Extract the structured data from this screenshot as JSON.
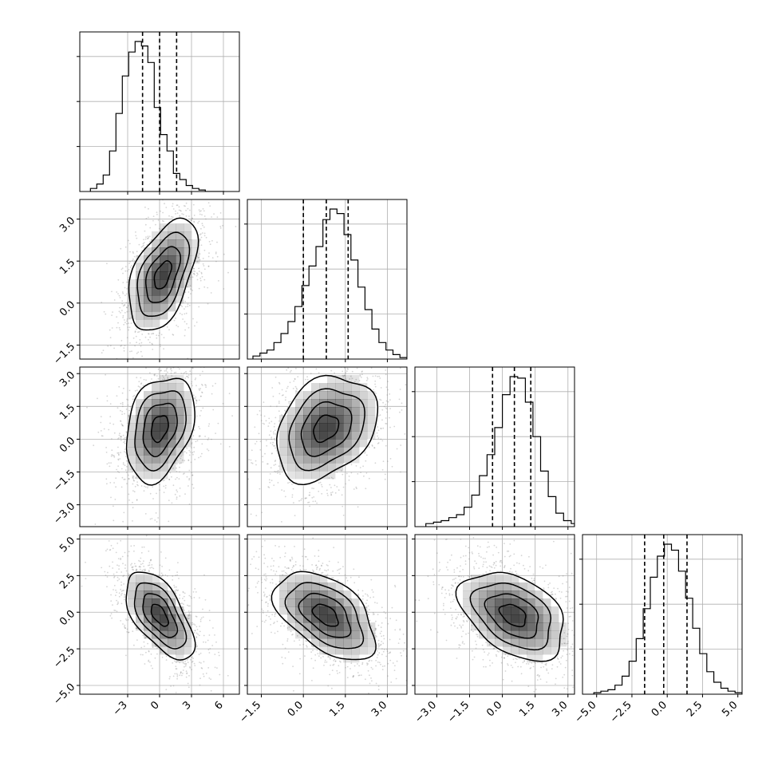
{
  "chart_data": {
    "type": "corner",
    "parameters": [
      {
        "xlim": [
          -7.5,
          7.5
        ],
        "xticks": [
          -3,
          0,
          3,
          6
        ],
        "xtick_labels": [
          "−3",
          "0",
          "3",
          "6"
        ],
        "hist_bins": [
          -6.5,
          -5.9,
          -5.3,
          -4.7,
          -4.1,
          -3.5,
          -2.9,
          -2.3,
          -1.7,
          -1.1,
          -0.5,
          0.1,
          0.7,
          1.3,
          1.9,
          2.5,
          3.1,
          3.7,
          4.3,
          4.9,
          5.5,
          6.1
        ],
        "hist_counts": [
          2,
          5,
          11,
          27,
          52,
          77,
          93,
          100,
          97,
          86,
          56,
          38,
          27,
          12,
          8,
          4,
          2,
          1,
          0,
          0,
          0
        ],
        "quantiles": [
          -1.6,
          0.0,
          1.6
        ]
      },
      {
        "xlim": [
          -2.0,
          3.7
        ],
        "xticks": [
          -1.5,
          0.0,
          1.5,
          3.0
        ],
        "xtick_labels": [
          "−1.5",
          "0.0",
          "1.5",
          "3.0"
        ],
        "ylim": [
          -2.0,
          3.7
        ],
        "yticks": [
          -1.5,
          0.0,
          1.5,
          3.0
        ],
        "ytick_labels": [
          "−1.5",
          "0.0",
          "1.5",
          "3.0"
        ],
        "hist_bins": [
          -1.8,
          -1.55,
          -1.3,
          -1.05,
          -0.8,
          -0.55,
          -0.3,
          -0.05,
          0.2,
          0.45,
          0.7,
          0.95,
          1.2,
          1.45,
          1.7,
          1.95,
          2.2,
          2.45,
          2.7,
          2.95,
          3.2,
          3.45,
          3.7
        ],
        "hist_counts": [
          2,
          4,
          6,
          11,
          17,
          25,
          35,
          49,
          62,
          75,
          93,
          100,
          97,
          83,
          66,
          48,
          33,
          20,
          11,
          6,
          3,
          1
        ],
        "quantiles": [
          0.0,
          0.82,
          1.6
        ]
      },
      {
        "xlim": [
          -4.0,
          3.3
        ],
        "xticks": [
          -3.0,
          -1.5,
          0.0,
          1.5,
          3.0
        ],
        "xtick_labels": [
          "−3.0",
          "−1.5",
          "0.0",
          "1.5",
          "3.0"
        ],
        "ylim": [
          -4.0,
          3.3
        ],
        "yticks": [
          -3.0,
          -1.5,
          0.0,
          1.5,
          3.0
        ],
        "ytick_labels": [
          "−3.0",
          "−1.5",
          "0.0",
          "1.5",
          "3.0"
        ],
        "hist_bins": [
          -3.5,
          -3.15,
          -2.8,
          -2.45,
          -2.1,
          -1.75,
          -1.4,
          -1.05,
          -0.7,
          -0.35,
          0.0,
          0.35,
          0.7,
          1.05,
          1.4,
          1.75,
          2.1,
          2.45,
          2.8,
          3.15,
          3.3
        ],
        "hist_counts": [
          2,
          3,
          4,
          6,
          8,
          13,
          21,
          34,
          48,
          66,
          88,
          100,
          99,
          83,
          60,
          37,
          20,
          9,
          4,
          2
        ],
        "quantiles": [
          -0.45,
          0.55,
          1.3
        ]
      },
      {
        "xlim": [
          -6.0,
          5.3
        ],
        "xticks": [
          -5.0,
          -2.5,
          0.0,
          2.5,
          5.0
        ],
        "xtick_labels": [
          "−5.0",
          "−2.5",
          "0.0",
          "2.5",
          "5.0"
        ],
        "ylim": [
          -5.6,
          5.3
        ],
        "yticks": [
          -5.0,
          -2.5,
          0.0,
          2.5,
          5.0
        ],
        "ytick_labels": [
          "−5.0",
          "−2.5",
          "0.0",
          "2.5",
          "5.0"
        ],
        "hist_bins": [
          -5.2,
          -4.7,
          -4.2,
          -3.7,
          -3.2,
          -2.7,
          -2.2,
          -1.7,
          -1.2,
          -0.7,
          -0.2,
          0.3,
          0.8,
          1.3,
          1.8,
          2.3,
          2.8,
          3.3,
          3.8,
          4.3,
          4.8,
          5.3
        ],
        "hist_counts": [
          1,
          2,
          3,
          6,
          12,
          22,
          37,
          57,
          78,
          92,
          100,
          96,
          82,
          64,
          44,
          27,
          15,
          8,
          4,
          2,
          1
        ],
        "quantiles": [
          -1.6,
          -0.25,
          1.4
        ]
      }
    ],
    "pairs": [
      {
        "row": 1,
        "col": 0,
        "peak": [
          0.3,
          1.0
        ],
        "sigma": [
          1.6,
          1.0
        ],
        "rho": 0.5
      },
      {
        "row": 2,
        "col": 0,
        "peak": [
          0.0,
          0.5
        ],
        "sigma": [
          1.6,
          1.2
        ],
        "rho": 0.3
      },
      {
        "row": 2,
        "col": 1,
        "peak": [
          0.8,
          0.5
        ],
        "sigma": [
          0.9,
          1.2
        ],
        "rho": 0.3
      },
      {
        "row": 3,
        "col": 0,
        "peak": [
          0.0,
          -0.2
        ],
        "sigma": [
          1.6,
          1.5
        ],
        "rho": -0.6
      },
      {
        "row": 3,
        "col": 1,
        "peak": [
          0.8,
          -0.2
        ],
        "sigma": [
          0.9,
          1.5
        ],
        "rho": -0.5
      },
      {
        "row": 3,
        "col": 2,
        "peak": [
          0.5,
          -0.2
        ],
        "sigma": [
          1.2,
          1.5
        ],
        "rho": -0.4
      }
    ],
    "contour_levels": [
      0.5,
      1.0,
      1.5,
      2.0
    ],
    "grid": true,
    "colors": {
      "hist": "#000000",
      "points": "#888888",
      "shade": "#222222",
      "grid": "#b0b0b0"
    }
  }
}
